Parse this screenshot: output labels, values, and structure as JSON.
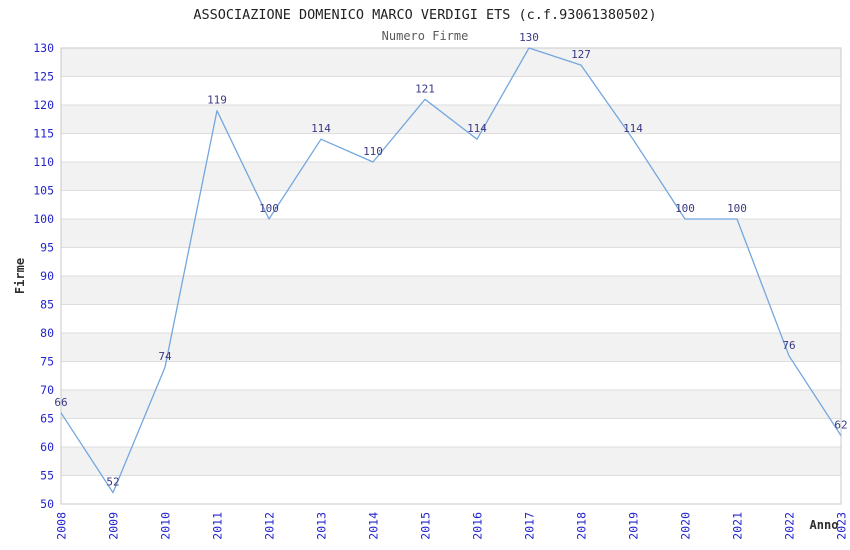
{
  "chart_data": {
    "type": "line",
    "title": "ASSOCIAZIONE DOMENICO MARCO VERDIGI ETS (c.f.93061380502)",
    "subtitle": "Numero Firme",
    "xlabel": "Anno",
    "ylabel": "Firme",
    "categories": [
      "2008",
      "2009",
      "2010",
      "2011",
      "2012",
      "2013",
      "2014",
      "2015",
      "2016",
      "2017",
      "2018",
      "2019",
      "2020",
      "2021",
      "2022",
      "2023"
    ],
    "values": [
      66,
      52,
      74,
      119,
      100,
      114,
      110,
      121,
      114,
      130,
      127,
      114,
      100,
      100,
      76,
      62
    ],
    "point_labels": [
      "66",
      "52",
      "74",
      "119",
      "100",
      "114",
      "110",
      "121",
      "114",
      "130",
      "127",
      "114",
      "100",
      "100",
      "76",
      "62"
    ],
    "ylim": [
      50,
      130
    ],
    "ytick_step": 5,
    "legend_position": "none",
    "grid": "horizontal-bands-alternating",
    "colors": {
      "line": "#74a7de",
      "point_label": "#3a3a85",
      "tick_label": "#2424cc",
      "title": "#1f1f1f",
      "subtitle": "#5a5a5a",
      "axis_title": "#2e2e2e",
      "band_gray": "#f2f2f2",
      "band_white": "#ffffff",
      "gridline": "#dedede",
      "plot_border": "#c9c9c9",
      "background": "#ffffff"
    }
  }
}
